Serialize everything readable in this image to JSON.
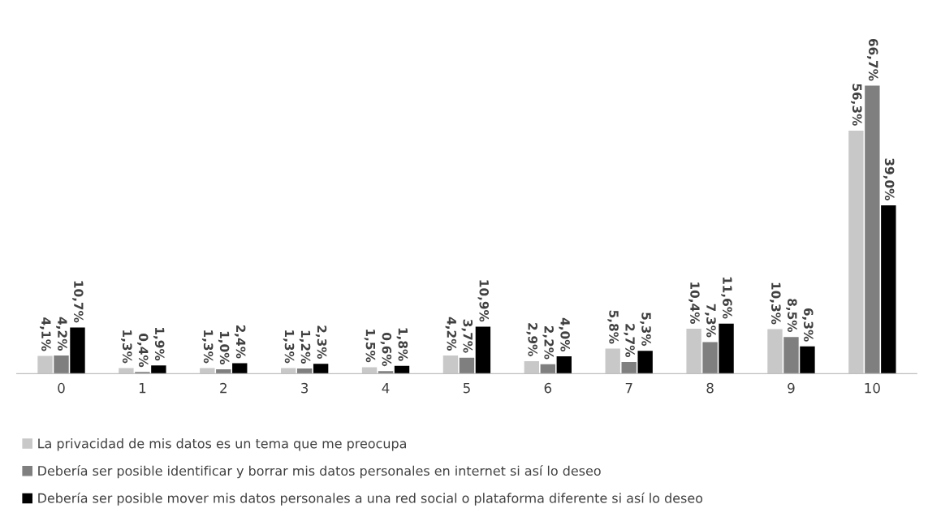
{
  "chart_data": {
    "type": "bar",
    "categories": [
      "0",
      "1",
      "2",
      "3",
      "4",
      "5",
      "6",
      "7",
      "8",
      "9",
      "10"
    ],
    "series": [
      {
        "name": "La privacidad de mis datos es un tema que me preocupa",
        "color": "#c8c8c8",
        "values": [
          4.1,
          1.3,
          1.3,
          1.3,
          1.5,
          4.2,
          2.9,
          5.8,
          10.4,
          10.3,
          56.3
        ],
        "value_labels": [
          "4,1%",
          "1,3%",
          "1,3%",
          "1,3%",
          "1,5%",
          "4,2%",
          "2,9%",
          "5,8%",
          "10,4%",
          "10,3%",
          "56,3%"
        ]
      },
      {
        "name": "Debería ser posible identificar y borrar mis datos personales en internet si así lo deseo",
        "color": "#7f7f7f",
        "values": [
          4.2,
          0.4,
          1.0,
          1.2,
          0.6,
          3.7,
          2.2,
          2.7,
          7.3,
          8.5,
          66.7
        ],
        "value_labels": [
          "4,2%",
          "0,4%",
          "1,0%",
          "1,2%",
          "0,6%",
          "3,7%",
          "2,2%",
          "2,7%",
          "7,3%",
          "8,5%",
          "66,7%"
        ]
      },
      {
        "name": "Debería ser posible mover mis datos personales a una red social o plataforma diferente si así lo deseo",
        "color": "#000000",
        "values": [
          10.7,
          1.9,
          2.4,
          2.3,
          1.8,
          10.9,
          4.0,
          5.3,
          11.6,
          6.3,
          39.0
        ],
        "value_labels": [
          "10,7%",
          "1,9%",
          "2,4%",
          "2,3%",
          "1,8%",
          "10,9%",
          "4,0%",
          "5,3%",
          "11,6%",
          "6,3%",
          "39,0%"
        ]
      }
    ],
    "grid": false,
    "legend": "bottom"
  }
}
